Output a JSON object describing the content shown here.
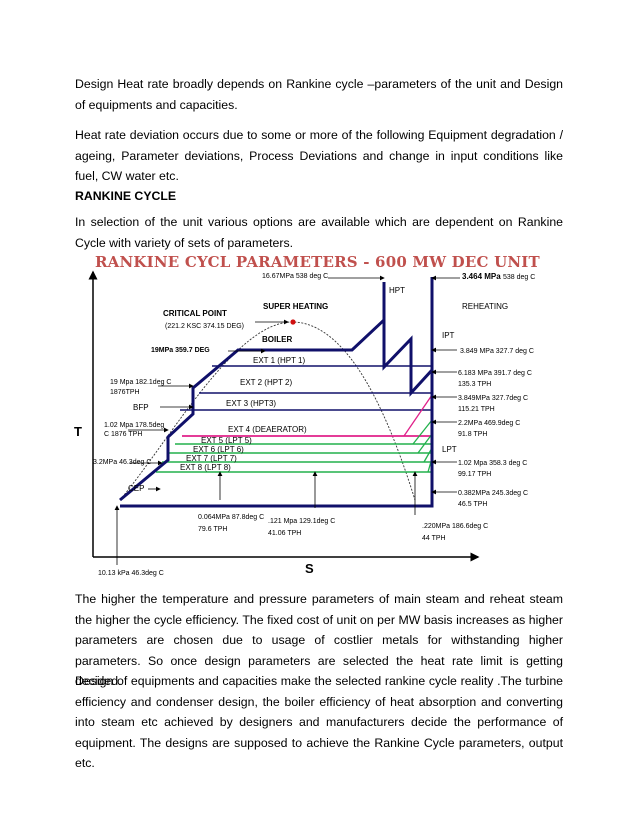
{
  "paragraphs": {
    "p1": "Design Heat rate broadly depends on Rankine cycle –parameters of the unit and Design of equipments and capacities.",
    "p2": "Heat rate deviation occurs due to some or more of the following Equipment degradation / ageing, Parameter deviations, Process Deviations and change in  input conditions like fuel, CW water etc.",
    "heading": "RANKINE CYCLE",
    "p3": "In selection of the unit various options are available which are dependent on Rankine Cycle with variety of sets of parameters.",
    "p4": "The higher the temperature and pressure parameters of main steam and reheat steam the higher the cycle efficiency. The fixed cost of unit on per MW basis increases as higher parameters are chosen due to usage of costlier metals for withstanding higher parameters. So once design parameters are selected the heat rate limit is getting decided.",
    "p5": "Design of equipments and capacities make the selected rankine cycle reality .The turbine efficiency and condenser design, the boiler efficiency of heat absorption and converting into steam etc achieved by designers and manufacturers decide the performance of equipment. The designs are supposed to achieve the Rankine Cycle parameters, output etc."
  },
  "diagram": {
    "title": "RANKINE CYCL PARAMETERS - 600 MW DEC UNIT",
    "axis_t": "T",
    "axis_s": "S",
    "labels": {
      "ms_top": "16.67MPa 538 deg C",
      "rh_top_bold": "3.464 MPa",
      "rh_top_rest": "538 deg C",
      "hpt": "HPT",
      "critical_point": "CRITICAL POINT",
      "critical_vals": "(221.2 KSC 374.15 DEG)",
      "super_heating": "SUPER HEATING",
      "reheating": "REHEATING",
      "boiler": "BOILER",
      "ipt": "IPT",
      "p19_359": "19MPa 359.7 DEG",
      "ipt_exh": "3.849 MPa 327.7 deg C",
      "ext1": "EXT 1  (HPT 1)",
      "ext2": "EXT 2  (HPT 2)",
      "ext3": "EXT 3  (HPT3)",
      "ext4": "EXT 4  (DEAERATOR)",
      "ext5": "EXT 5  (LPT 5)",
      "ext6": "EXT 6  (LPT 6)",
      "ext7": "EXT 7  (LPT 7)",
      "ext8": "EXT 8  (LPT 8)",
      "fw1": "19 Mpa 182.1deg  C",
      "fw2": "1876TPH",
      "bfp": "BFP",
      "dea1": "1.02 Mpa 178.5deg",
      "dea2": "C 1876  TPH",
      "cond_l": "3.2MPa 46.3deg  C",
      "cep": "CEP",
      "r61a": "6.183 MPa 391.7 deg  C",
      "r61b": "135.3  TPH",
      "r38a": "3.849MPa 327.7deg C",
      "r38b": "115.21 TPH",
      "r22a": "2.2MPa 469.9deg C",
      "r22b": "91.8 TPH",
      "lpt": "LPT",
      "r10a": "1.02 Mpa 358.3  deg C",
      "r10b": "99.17  TPH",
      "r38la": "0.382MPa 245.3deg C",
      "r38lb": "46.5  TPH",
      "b064a": "0.064MPa 87.8deg  C",
      "b064b": "79.6 TPH",
      "b121a": ".121 Mpa 129.1deg  C",
      "b121b": "41.06 TPH",
      "b220a": ".220MPa 186.6deg C",
      "b220b": "44 TPH",
      "cond_b": "10.13 kPa  46.3deg  C"
    },
    "colors": {
      "cycle": "#10106a",
      "green": "#22b14c",
      "pink": "#e0208a",
      "dome": "#333333",
      "critical": "#d01010"
    }
  }
}
